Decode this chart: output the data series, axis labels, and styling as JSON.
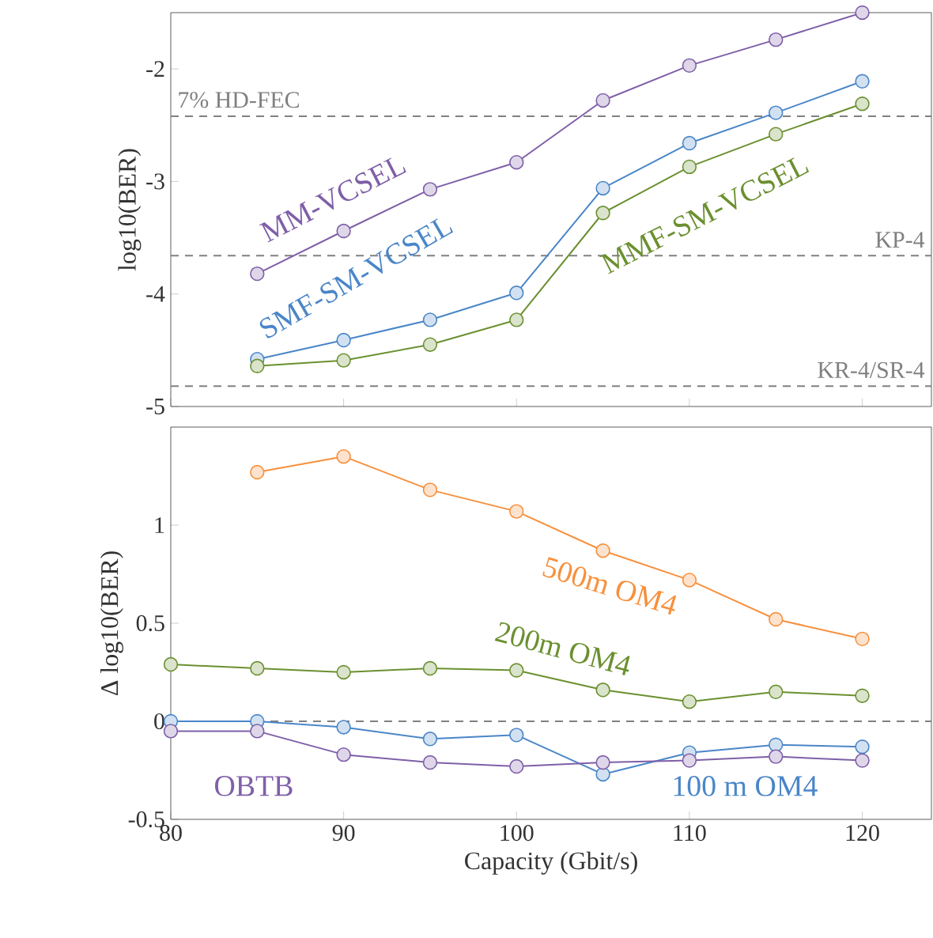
{
  "chart_data": [
    {
      "type": "line",
      "ylabel": "log10(BER)",
      "xlim": [
        80,
        124
      ],
      "ylim": [
        -5,
        -1.5
      ],
      "tick_labels": "y",
      "marker": "circle",
      "xticks": [
        {
          "value": 80,
          "label": null
        },
        {
          "value": 90,
          "label": null
        },
        {
          "value": 100,
          "label": null
        },
        {
          "value": 110,
          "label": null
        },
        {
          "value": 120,
          "label": null
        }
      ],
      "yticks": [
        -5,
        -4,
        -3,
        -2
      ],
      "x": [
        85,
        90,
        95,
        100,
        105,
        110,
        115,
        120
      ],
      "series": [
        {
          "name": "MM-VCSEL",
          "color": "#7f5fa8",
          "values": [
            -3.82,
            -3.44,
            -3.07,
            -2.83,
            -2.28,
            -1.97,
            -1.74,
            -1.5
          ]
        },
        {
          "name": "SMF-SM-VCSEL",
          "color": "#4a86c8",
          "values": [
            -4.58,
            -4.41,
            -4.23,
            -3.99,
            -3.06,
            -2.66,
            -2.39,
            -2.11
          ]
        },
        {
          "name": "MMF-SM-VCSEL",
          "color": "#6b9030",
          "values": [
            -4.64,
            -4.59,
            -4.45,
            -4.23,
            -3.28,
            -2.87,
            -2.58,
            -2.31
          ]
        }
      ],
      "ref_lines": [
        {
          "axis": "y",
          "value": -2.42,
          "label": "7% HD-FEC",
          "color": "#808080",
          "line_style": "dashed"
        },
        {
          "axis": "y",
          "value": -3.66,
          "label": "KP-4",
          "color": "#808080",
          "line_style": "dashed"
        },
        {
          "axis": "y",
          "value": -4.82,
          "label": "KR-4/SR-4",
          "color": "#808080",
          "line_style": "dashed"
        }
      ]
    },
    {
      "type": "line",
      "xlabel": "Capacity (Gbit/s)",
      "ylabel": "Δ log10(BER)",
      "xlim": [
        80,
        124
      ],
      "ylim": [
        -0.5,
        1.5
      ],
      "marker": "circle",
      "xticks": [
        80,
        90,
        100,
        110,
        120
      ],
      "yticks": [
        -0.5,
        0,
        0.5,
        1
      ],
      "x": [
        80,
        85,
        90,
        95,
        100,
        105,
        110,
        115,
        120
      ],
      "series": [
        {
          "name": "500m OM4",
          "color": "#f7903c",
          "x": [
            85,
            90,
            95,
            100,
            105,
            110,
            115,
            120
          ],
          "values": [
            1.27,
            1.35,
            1.18,
            1.07,
            0.87,
            0.72,
            0.52,
            0.42
          ]
        },
        {
          "name": "200m OM4",
          "color": "#6b9030",
          "values": [
            0.29,
            0.27,
            0.25,
            0.27,
            0.26,
            0.16,
            0.1,
            0.15,
            0.13
          ]
        },
        {
          "name": "100 m OM4",
          "color": "#4a86c8",
          "values": [
            0.0,
            0.0,
            -0.03,
            -0.09,
            -0.07,
            -0.27,
            -0.16,
            -0.12,
            -0.13
          ]
        },
        {
          "name": "OBTB",
          "color": "#7f5fa8",
          "values": [
            -0.05,
            -0.05,
            -0.17,
            -0.21,
            -0.23,
            -0.21,
            -0.2,
            -0.18,
            -0.2
          ]
        }
      ],
      "ref_lines": [
        {
          "axis": "y",
          "value": 0,
          "color": "#808080",
          "line_style": "dashed"
        }
      ]
    }
  ]
}
